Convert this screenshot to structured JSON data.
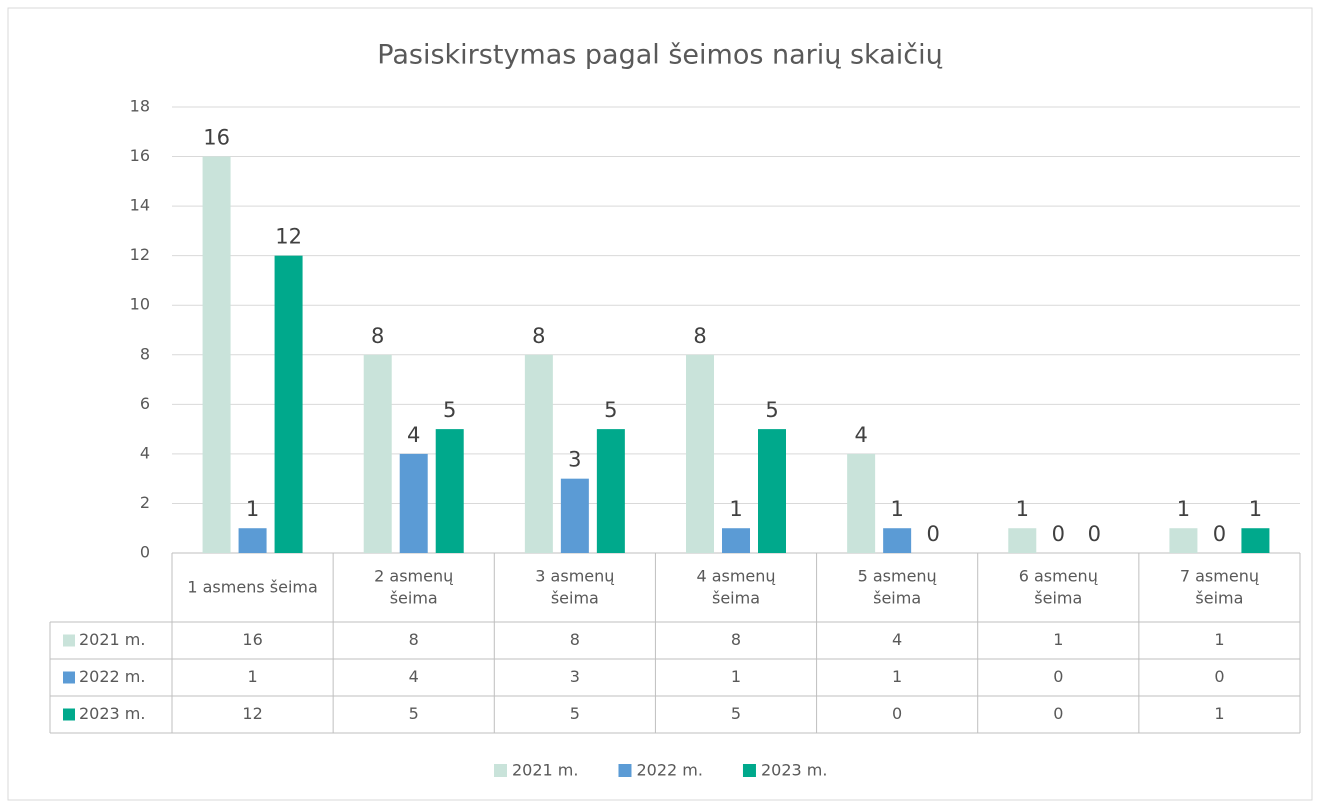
{
  "chart_data": {
    "type": "bar",
    "title": "Pasiskirstymas pagal šeimos narių skaičių",
    "categories": [
      "1 asmens šeima",
      "2 asmenų\nšeima",
      "3 asmenų\nšeima",
      "4 asmenų\nšeima",
      "5 asmenų\nšeima",
      "6 asmenų\nšeima",
      "7 asmenų\nšeima"
    ],
    "series": [
      {
        "name": "2021 m.",
        "color": "#c9e3da",
        "values": [
          16,
          8,
          8,
          8,
          4,
          1,
          1
        ]
      },
      {
        "name": "2022 m.",
        "color": "#5b9bd5",
        "values": [
          1,
          4,
          3,
          1,
          1,
          0,
          0
        ]
      },
      {
        "name": "2023 m.",
        "color": "#00a98c",
        "values": [
          12,
          5,
          5,
          5,
          0,
          0,
          1
        ]
      }
    ],
    "ylim": [
      0,
      18
    ],
    "yticks": [
      0,
      2,
      4,
      6,
      8,
      10,
      12,
      14,
      16,
      18
    ],
    "grid": true,
    "legend": "bottom",
    "data_table": true
  }
}
